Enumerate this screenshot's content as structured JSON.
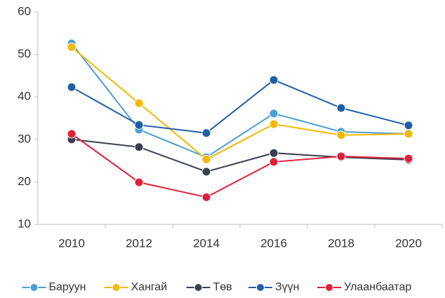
{
  "chart_data": {
    "type": "line",
    "categories": [
      "2010",
      "2012",
      "2014",
      "2016",
      "2018",
      "2020"
    ],
    "series": [
      {
        "name": "Баруун",
        "color": "#4a9fd4",
        "values": [
          52.6,
          32.3,
          25.8,
          36.1,
          31.8,
          31.3
        ]
      },
      {
        "name": "Хангай",
        "color": "#f5b800",
        "values": [
          51.7,
          38.5,
          25.3,
          33.6,
          31.0,
          31.3
        ]
      },
      {
        "name": "Төв",
        "color": "#3a3f4f",
        "values": [
          30.0,
          28.2,
          22.4,
          26.8,
          25.8,
          25.2
        ]
      },
      {
        "name": "Зүүн",
        "color": "#1f5fa8",
        "values": [
          42.3,
          33.4,
          31.5,
          44.0,
          37.4,
          33.3
        ]
      },
      {
        "name": "Улаанбаатар",
        "color": "#e0203a",
        "values": [
          31.3,
          19.9,
          16.4,
          24.7,
          26.0,
          25.5
        ]
      }
    ],
    "ylim": [
      10,
      60
    ],
    "yticks": [
      10,
      20,
      30,
      40,
      50,
      60
    ],
    "grid": false,
    "legend": "bottom"
  }
}
